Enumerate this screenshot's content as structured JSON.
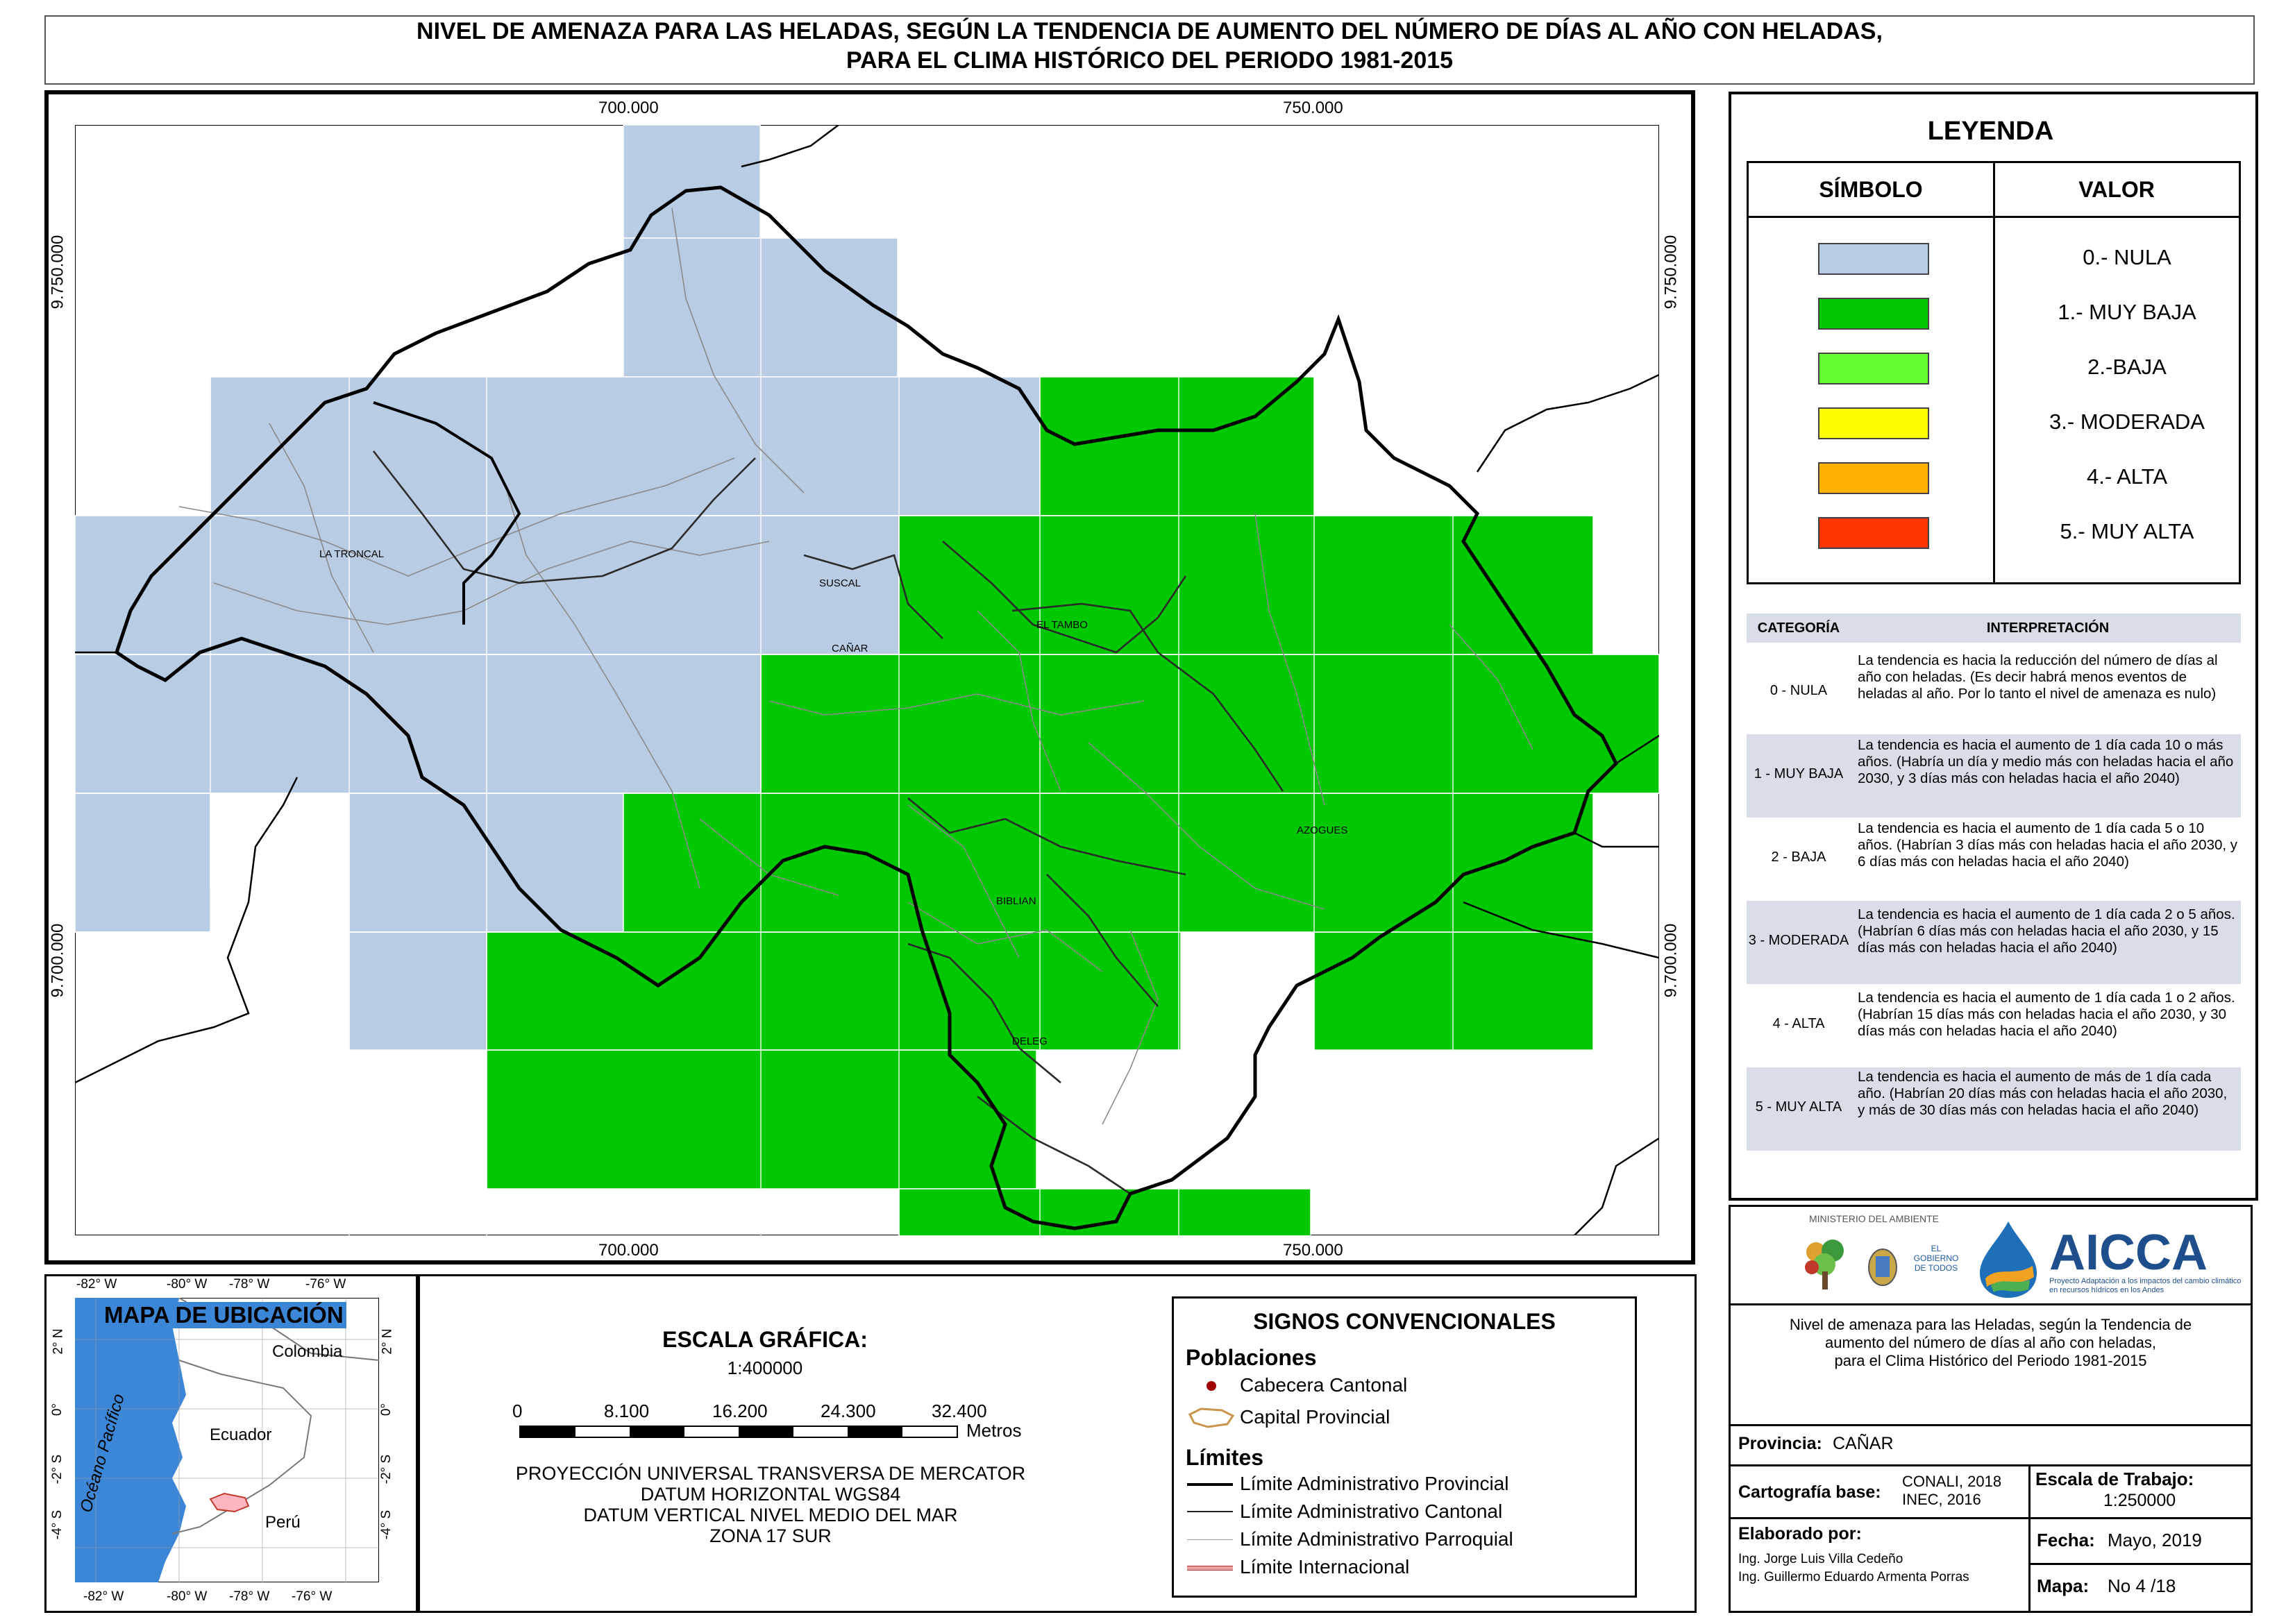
{
  "title": {
    "line1": "NIVEL DE AMENAZA PARA LAS HELADAS, SEGÚN LA TENDENCIA DE AUMENTO DEL NÚMERO DE DÍAS AL AÑO CON HELADAS,",
    "line2": "PARA EL CLIMA HISTÓRICO DEL PERIODO 1981-2015"
  },
  "map": {
    "x_ticks": [
      "700.000",
      "750.000"
    ],
    "y_ticks": [
      "9.750.000",
      "9.700.000"
    ],
    "places": {
      "la_troncal": "LA TRONCAL",
      "suscal": "SUSCAL",
      "canar": "CAÑAR",
      "el_tambo": "EL TAMBO",
      "azogues": "AZOGUES",
      "biblian": "BIBLIAN",
      "deleg": "DELEG"
    },
    "colors": {
      "nula": "#b8cce4",
      "muy_baja": "#00c800",
      "baja": "#66ff33",
      "moderada": "#ffff00",
      "alta": "#ffb300",
      "muy_alta": "#ff3300"
    }
  },
  "legend": {
    "title": "LEYENDA",
    "col_symbol": "SÍMBOLO",
    "col_value": "VALOR",
    "items": [
      {
        "label": "0.- NULA",
        "color": "#b8cce4"
      },
      {
        "label": "1.- MUY BAJA",
        "color": "#00c800"
      },
      {
        "label": "2.-BAJA",
        "color": "#66ff33"
      },
      {
        "label": "3.- MODERADA",
        "color": "#ffff00"
      },
      {
        "label": "4.- ALTA",
        "color": "#ffb300"
      },
      {
        "label": "5.- MUY ALTA",
        "color": "#ff3300"
      }
    ]
  },
  "interpretation": {
    "col_category": "CATEGORÍA",
    "col_interpretation": "INTERPRETACIÓN",
    "rows": [
      {
        "category": "0 - NULA",
        "text": "La tendencia es hacia la reducción del número de días al año con heladas. (Es decir habrá menos eventos de heladas al año. Por lo tanto el nivel de amenaza es nulo)"
      },
      {
        "category": "1 - MUY BAJA",
        "text": "La tendencia es hacia el aumento de 1 día cada 10 o más años. (Habría un día y medio más con heladas hacia el año 2030, y 3 días más con heladas hacia el año 2040)"
      },
      {
        "category": "2 - BAJA",
        "text": "La tendencia es hacia el aumento de 1 día cada 5 o 10 años. (Habrían 3 días más con heladas hacia el año 2030, y 6 días más con heladas hacia el año 2040)"
      },
      {
        "category": "3 - MODERADA",
        "text": "La tendencia es hacia el aumento de 1 día cada 2 o 5 años. (Habrían 6 días más con heladas hacia el año 2030, y 15 días más con heladas hacia el año 2040)"
      },
      {
        "category": "4 - ALTA",
        "text": "La tendencia es hacia el aumento de 1 día cada 1 o 2 años. (Habrían 15 días más con heladas hacia el año 2030, y 30 días más con heladas hacia el año 2040)"
      },
      {
        "category": "5 - MUY ALTA",
        "text": "La tendencia es hacia el aumento de más de 1 día cada año. (Habrían 20 días más con heladas hacia el año 2030, y más de 30 días más con heladas hacia el año 2040)"
      }
    ]
  },
  "location_map": {
    "title": "MAPA DE UBICACIÓN",
    "top_ticks": [
      "-82° W",
      "-80° W",
      "-78° W",
      "-76° W"
    ],
    "bottom_ticks": [
      "-82° W",
      "-80° W",
      "-78° W",
      "-76° W"
    ],
    "left_ticks": [
      "2° N",
      "0°",
      "-2° S",
      "-4° S"
    ],
    "right_ticks": [
      "2° N",
      "0°",
      "-2° S",
      "-4° S"
    ],
    "countries": {
      "colombia": "Colombia",
      "ecuador": "Ecuador",
      "peru": "Perú"
    },
    "ocean": "Océano Pacífico"
  },
  "scale": {
    "title": "ESCALA GRÁFICA:",
    "ratio": "1:400000",
    "ticks": [
      "0",
      "8.100",
      "16.200",
      "24.300",
      "32.400"
    ],
    "unit": "Metros",
    "projection": [
      "PROYECCIÓN UNIVERSAL TRANSVERSA DE MERCATOR",
      "DATUM HORIZONTAL WGS84",
      "DATUM VERTICAL NIVEL MEDIO DEL MAR",
      "ZONA 17 SUR"
    ]
  },
  "signos": {
    "title": "SIGNOS CONVENCIONALES",
    "poblaciones": "Poblaciones",
    "cabecera": "Cabecera Cantonal",
    "capital": "Capital Provincial",
    "limites": "Límites",
    "provincial": "Límite Administrativo Provincial",
    "cantonal": "Límite Administrativo Cantonal",
    "parroquial": "Límite Administrativo Parroquial",
    "internacional": "Límite Internacional"
  },
  "info": {
    "ministry": "MINISTERIO DEL AMBIENTE",
    "gobierno": "EL GOBIERNO DE TODOS",
    "aicca": "AICCA",
    "aicca_sub": "Proyecto Adaptación a los impactos del cambio climático en recursos hídricos en los Andes",
    "description": [
      "Nivel de amenaza para las Heladas, según la Tendencia de",
      "aumento del número de días al año con heladas,",
      "para el Clima Histórico del Periodo 1981-2015"
    ],
    "provincia_label": "Provincia:",
    "provincia": "CAÑAR",
    "cartografia_label": "Cartografía base:",
    "cartografia_1": "CONALI, 2018",
    "cartografia_2": "INEC, 2016",
    "escala_label": "Escala de Trabajo:",
    "escala": "1:250000",
    "elaborado_label": "Elaborado por:",
    "autor1": "Ing. Jorge Luis Villa Cedeño",
    "autor2": "Ing. Guillermo Eduardo Armenta Porras",
    "fecha_label": "Fecha:",
    "fecha": "Mayo, 2019",
    "mapa_label": "Mapa:",
    "mapa": "No 4 /18"
  }
}
